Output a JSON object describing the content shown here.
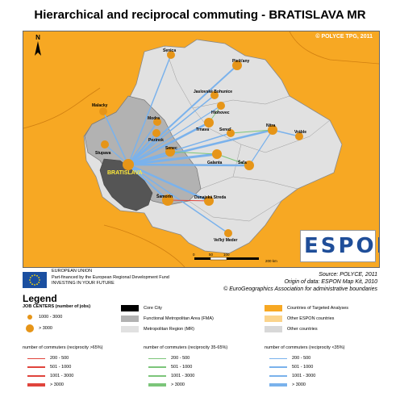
{
  "title": "Hierarchical and reciprocal commuting - BRATISLAVA MR",
  "map": {
    "copyright": "© POLYCE TPG, 2011",
    "north_label": "N",
    "scale_ticks": [
      "0",
      "50",
      "100",
      "200 km"
    ],
    "colors": {
      "countries_targeted": "#f7a823",
      "metropolitan_region": "#e1e1e1",
      "fma": "#b2b2b2",
      "core_city": "#555555",
      "job_center": "#e69518",
      "link_high": "#e0443c",
      "link_mid": "#7cc57a",
      "link_low": "#7ab2ec"
    },
    "places": [
      {
        "name": "Senica"
      },
      {
        "name": "Piešťany"
      },
      {
        "name": "Jaslovské Bohunice"
      },
      {
        "name": "Hlohovec"
      },
      {
        "name": "Malacky"
      },
      {
        "name": "Trnava"
      },
      {
        "name": "Modra"
      },
      {
        "name": "Pezinok"
      },
      {
        "name": "Sereď"
      },
      {
        "name": "Nitra"
      },
      {
        "name": "Vráble"
      },
      {
        "name": "Stupava"
      },
      {
        "name": "Senec"
      },
      {
        "name": "Galanta"
      },
      {
        "name": "Šaľa"
      },
      {
        "name": "BRATISLAVA"
      },
      {
        "name": "Šamorín"
      },
      {
        "name": "Dunajská Streda"
      },
      {
        "name": "Veľký Meder"
      }
    ]
  },
  "espon_logo": "ESPON",
  "eu": {
    "line1": "EUROPEAN UNION",
    "line2": "Part-financed by the European Regional Development Fund",
    "line3": "INVESTING IN YOUR FUTURE"
  },
  "source": {
    "line1": "Source: POLYCE, 2011",
    "line2": "Origin of data: ESPON Map Kit, 2010",
    "line3": "© EuroGeographics Association for administrative boundaries"
  },
  "legend": {
    "title": "Legend",
    "job_centers_title": "JOB CENTERS (number of jobs)",
    "job_small": "1000 - 3000",
    "job_large": "> 3000",
    "core_city": "Core City",
    "fma": "Functional Metropolitan Area (FMA)",
    "mr": "Metropolitan Region (MR)",
    "targeted": "Countries of Targeted Analyses",
    "other_espon": "Other ESPON countries",
    "other": "Other countries",
    "groups": [
      {
        "title": "number of commuters (reciprocity >65%)",
        "color": "#e0443c",
        "items": [
          "200 - 500",
          "501 - 1000",
          "1001 - 3000",
          "> 3000"
        ]
      },
      {
        "title": "number of commuters (reciprocity 35-65%)",
        "color": "#7cc57a",
        "items": [
          "200 - 500",
          "501 - 1000",
          "1001 - 3000",
          "> 3000"
        ]
      },
      {
        "title": "number of commuters (reciprocity <35%)",
        "color": "#7ab2ec",
        "items": [
          "200 - 500",
          "501 - 1000",
          "1001 - 3000",
          "> 3000"
        ]
      }
    ]
  }
}
